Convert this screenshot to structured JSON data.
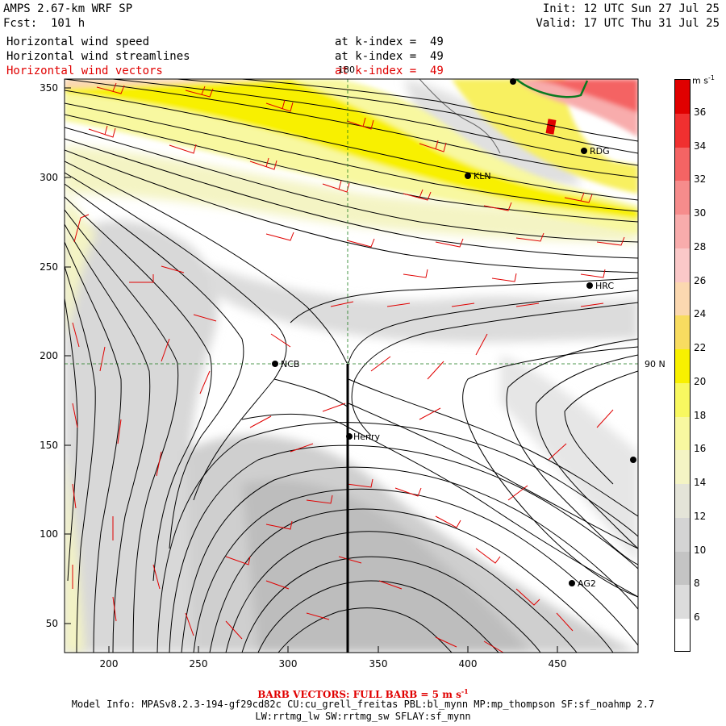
{
  "header": {
    "model": "AMPS 2.67-km WRF SP",
    "forecast": "Fcst:  101 h",
    "init": "Init: 12 UTC Sun 27 Jul 25",
    "valid": "Valid: 17 UTC Thu 31 Jul 25",
    "fields": [
      {
        "name": "Horizontal wind speed",
        "level": "at k-index =  49"
      },
      {
        "name": "Horizontal wind streamlines",
        "level": "at k-index =  49"
      },
      {
        "name": "Horizontal wind vectors",
        "level": "at k-index =  49"
      }
    ]
  },
  "map": {
    "meridian_label": "180",
    "latitude_label": "90 N",
    "stations": [
      {
        "name": "KLN"
      },
      {
        "name": "RDG"
      },
      {
        "name": "HRC"
      },
      {
        "name": "NCB"
      },
      {
        "name": "Henry"
      },
      {
        "name": "AG2"
      }
    ],
    "x_axis": {
      "range": [
        175,
        495
      ],
      "ticks": [
        "200",
        "250",
        "300",
        "350",
        "400",
        "450"
      ]
    },
    "y_axis": {
      "range": [
        33,
        355
      ],
      "ticks": [
        "50",
        "100",
        "150",
        "200",
        "250",
        "300",
        "350"
      ]
    }
  },
  "colorbar": {
    "unit": "m s",
    "unit_exp": "-1",
    "ticks": [
      "36",
      "34",
      "32",
      "30",
      "28",
      "26",
      "24",
      "22",
      "20",
      "18",
      "16",
      "14",
      "12",
      "10",
      "8",
      "6"
    ],
    "colors": [
      "#e00000",
      "#f03030",
      "#f46464",
      "#f68c8c",
      "#f8acac",
      "#fac8c8",
      "#fbd8b0",
      "#f8dc60",
      "#f8f000",
      "#f8f860",
      "#f8f8a0",
      "#f4f4c4",
      "#e4e4d8",
      "#d4d4d4",
      "#c4c4c4",
      "#dcdcdc",
      "#ffffff"
    ]
  },
  "footer": {
    "barb_label": "BARB VECTORS:  FULL BARB = 5 m s",
    "barb_exp": "-1",
    "model_info": "Model Info: MPASv8.2.3-194-gf29cd82c CU:cu_grell_freitas PBL:bl_mynn MP:mp_thompson SF:sf_noahmp 2.7",
    "physics": "LW:rrtmg_lw SW:rrtmg_sw SFLAY:sf_mynn"
  }
}
